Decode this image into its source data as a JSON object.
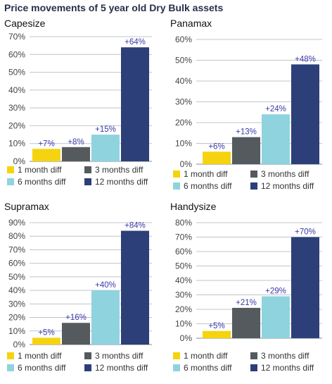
{
  "title": "Price movements of 5 year old Dry Bulk assets",
  "colors": {
    "1 month diff": "#f5d40f",
    "3 months diff": "#555a5f",
    "6 months diff": "#8fd3df",
    "12 months diff": "#2c3f78",
    "label": "#3a3aa8",
    "grid": "#bfc4cc"
  },
  "chart_data": [
    {
      "type": "bar",
      "title": "Capesize",
      "categories": [
        "1 month diff",
        "3 months diff",
        "6 months diff",
        "12 months diff"
      ],
      "values": [
        7,
        8,
        15,
        64
      ],
      "data_labels": [
        "+7%",
        "+8%",
        "+15%",
        "+64%"
      ],
      "ylim": [
        0,
        70
      ],
      "yticks": [
        "0%",
        "10%",
        "20%",
        "30%",
        "40%",
        "50%",
        "60%",
        "70%"
      ],
      "legend_position": "bottom"
    },
    {
      "type": "bar",
      "title": "Panamax",
      "categories": [
        "1 month diff",
        "3 months diff",
        "6 months diff",
        "12 months diff"
      ],
      "values": [
        6,
        13,
        24,
        48
      ],
      "data_labels": [
        "+6%",
        "+13%",
        "+24%",
        "+48%"
      ],
      "ylim": [
        0,
        60
      ],
      "yticks": [
        "0%",
        "10%",
        "20%",
        "30%",
        "40%",
        "50%",
        "60%"
      ],
      "legend_position": "bottom"
    },
    {
      "type": "bar",
      "title": "Supramax",
      "categories": [
        "1 month diff",
        "3 months diff",
        "6 months diff",
        "12 months diff"
      ],
      "values": [
        5,
        16,
        40,
        84
      ],
      "data_labels": [
        "+5%",
        "+16%",
        "+40%",
        "+84%"
      ],
      "ylim": [
        0,
        90
      ],
      "yticks": [
        "0%",
        "10%",
        "20%",
        "30%",
        "40%",
        "50%",
        "60%",
        "70%",
        "80%",
        "90%"
      ],
      "legend_position": "bottom"
    },
    {
      "type": "bar",
      "title": "Handysize",
      "categories": [
        "1 month diff",
        "3 months diff",
        "6 months diff",
        "12 months diff"
      ],
      "values": [
        5,
        21,
        29,
        70
      ],
      "data_labels": [
        "+5%",
        "+21%",
        "+29%",
        "+70%"
      ],
      "ylim": [
        0,
        80
      ],
      "yticks": [
        "0%",
        "10%",
        "20%",
        "30%",
        "40%",
        "50%",
        "60%",
        "70%",
        "80%"
      ],
      "legend_position": "bottom"
    }
  ]
}
